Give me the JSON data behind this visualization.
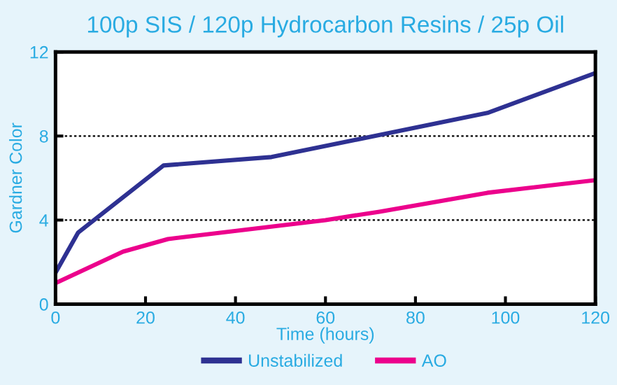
{
  "chart_data": {
    "type": "line",
    "title": "100p SIS / 120p Hydrocarbon Resins / 25p Oil",
    "xlabel": "Time (hours)",
    "ylabel": "Gardner Color",
    "series": [
      {
        "name": "Unstabilized",
        "color": "#2e3192",
        "x": [
          0,
          5,
          24,
          48,
          96,
          120
        ],
        "values": [
          1.5,
          3.4,
          6.6,
          7.0,
          9.1,
          11.0
        ]
      },
      {
        "name": "AO",
        "color": "#ec008c",
        "x": [
          0,
          15,
          25,
          60,
          72,
          96,
          120
        ],
        "values": [
          1.0,
          2.5,
          3.1,
          4.0,
          4.4,
          5.3,
          5.9
        ]
      }
    ],
    "xlim": [
      0,
      120
    ],
    "xticks": [
      0,
      20,
      40,
      60,
      80,
      100,
      120
    ],
    "ylim": [
      0,
      12
    ],
    "yticks": [
      0,
      4,
      8,
      12
    ],
    "grid": "y",
    "legend": "bottom",
    "marker": "none",
    "line_style": "solid"
  }
}
